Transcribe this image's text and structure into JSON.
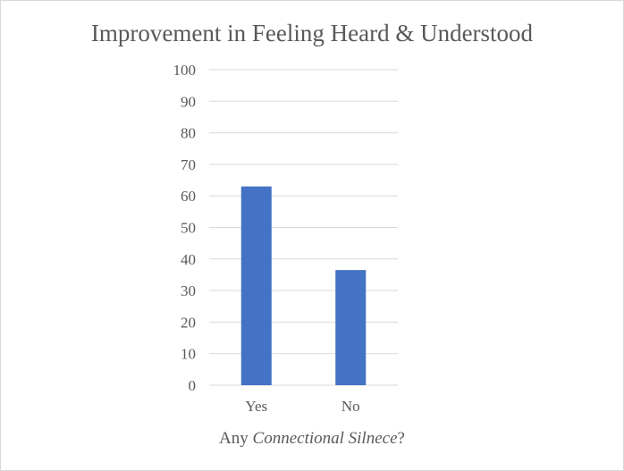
{
  "chart_data": {
    "type": "bar",
    "title": "Improvement in Feeling Heard & Understood",
    "xlabel_parts": {
      "prefix": "Any ",
      "emphasis": "Connectional Silnece",
      "suffix": "?"
    },
    "ylabel": "",
    "categories": [
      "Yes",
      "No"
    ],
    "values": [
      63,
      36.5
    ],
    "ylim": [
      0,
      100
    ],
    "yticks": [
      0,
      10,
      20,
      30,
      40,
      50,
      60,
      70,
      80,
      90,
      100
    ],
    "grid": true,
    "legend": "none",
    "bar_color": "#4472c4",
    "grid_color": "#d9d9d9"
  }
}
